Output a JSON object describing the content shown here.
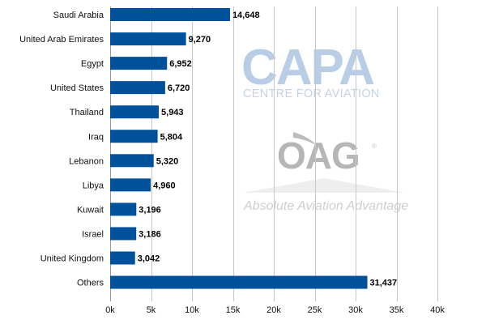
{
  "chart_data": {
    "type": "bar",
    "orientation": "horizontal",
    "categories": [
      "Saudi Arabia",
      "United Arab Emirates",
      "Egypt",
      "United States",
      "Thailand",
      "Iraq",
      "Lebanon",
      "Libya",
      "Kuwait",
      "Israel",
      "United Kingdom",
      "Others"
    ],
    "values": [
      14648,
      9270,
      6952,
      6720,
      5943,
      5804,
      5320,
      4960,
      3196,
      3186,
      3042,
      31437
    ],
    "value_labels": [
      "14,648",
      "9,270",
      "6,952",
      "6,720",
      "5,943",
      "5,804",
      "5,320",
      "4,960",
      "3,196",
      "3,186",
      "3,042",
      "31,437"
    ],
    "xlim": [
      0,
      40000
    ],
    "xticks": [
      0,
      5000,
      10000,
      15000,
      20000,
      25000,
      30000,
      35000,
      40000
    ],
    "xtick_labels": [
      "0k",
      "5k",
      "10k",
      "15k",
      "20k",
      "25k",
      "30k",
      "35k",
      "40k"
    ],
    "grid": true,
    "bar_color": "#00519c",
    "grid_color": "#c8c8c8"
  },
  "watermarks": {
    "capa": {
      "title": "CAPA",
      "subtitle": "CENTRE FOR AVIATION"
    },
    "oag": {
      "title": "OAG",
      "registered": "®",
      "subtitle": "Absolute Aviation Advantage"
    }
  }
}
